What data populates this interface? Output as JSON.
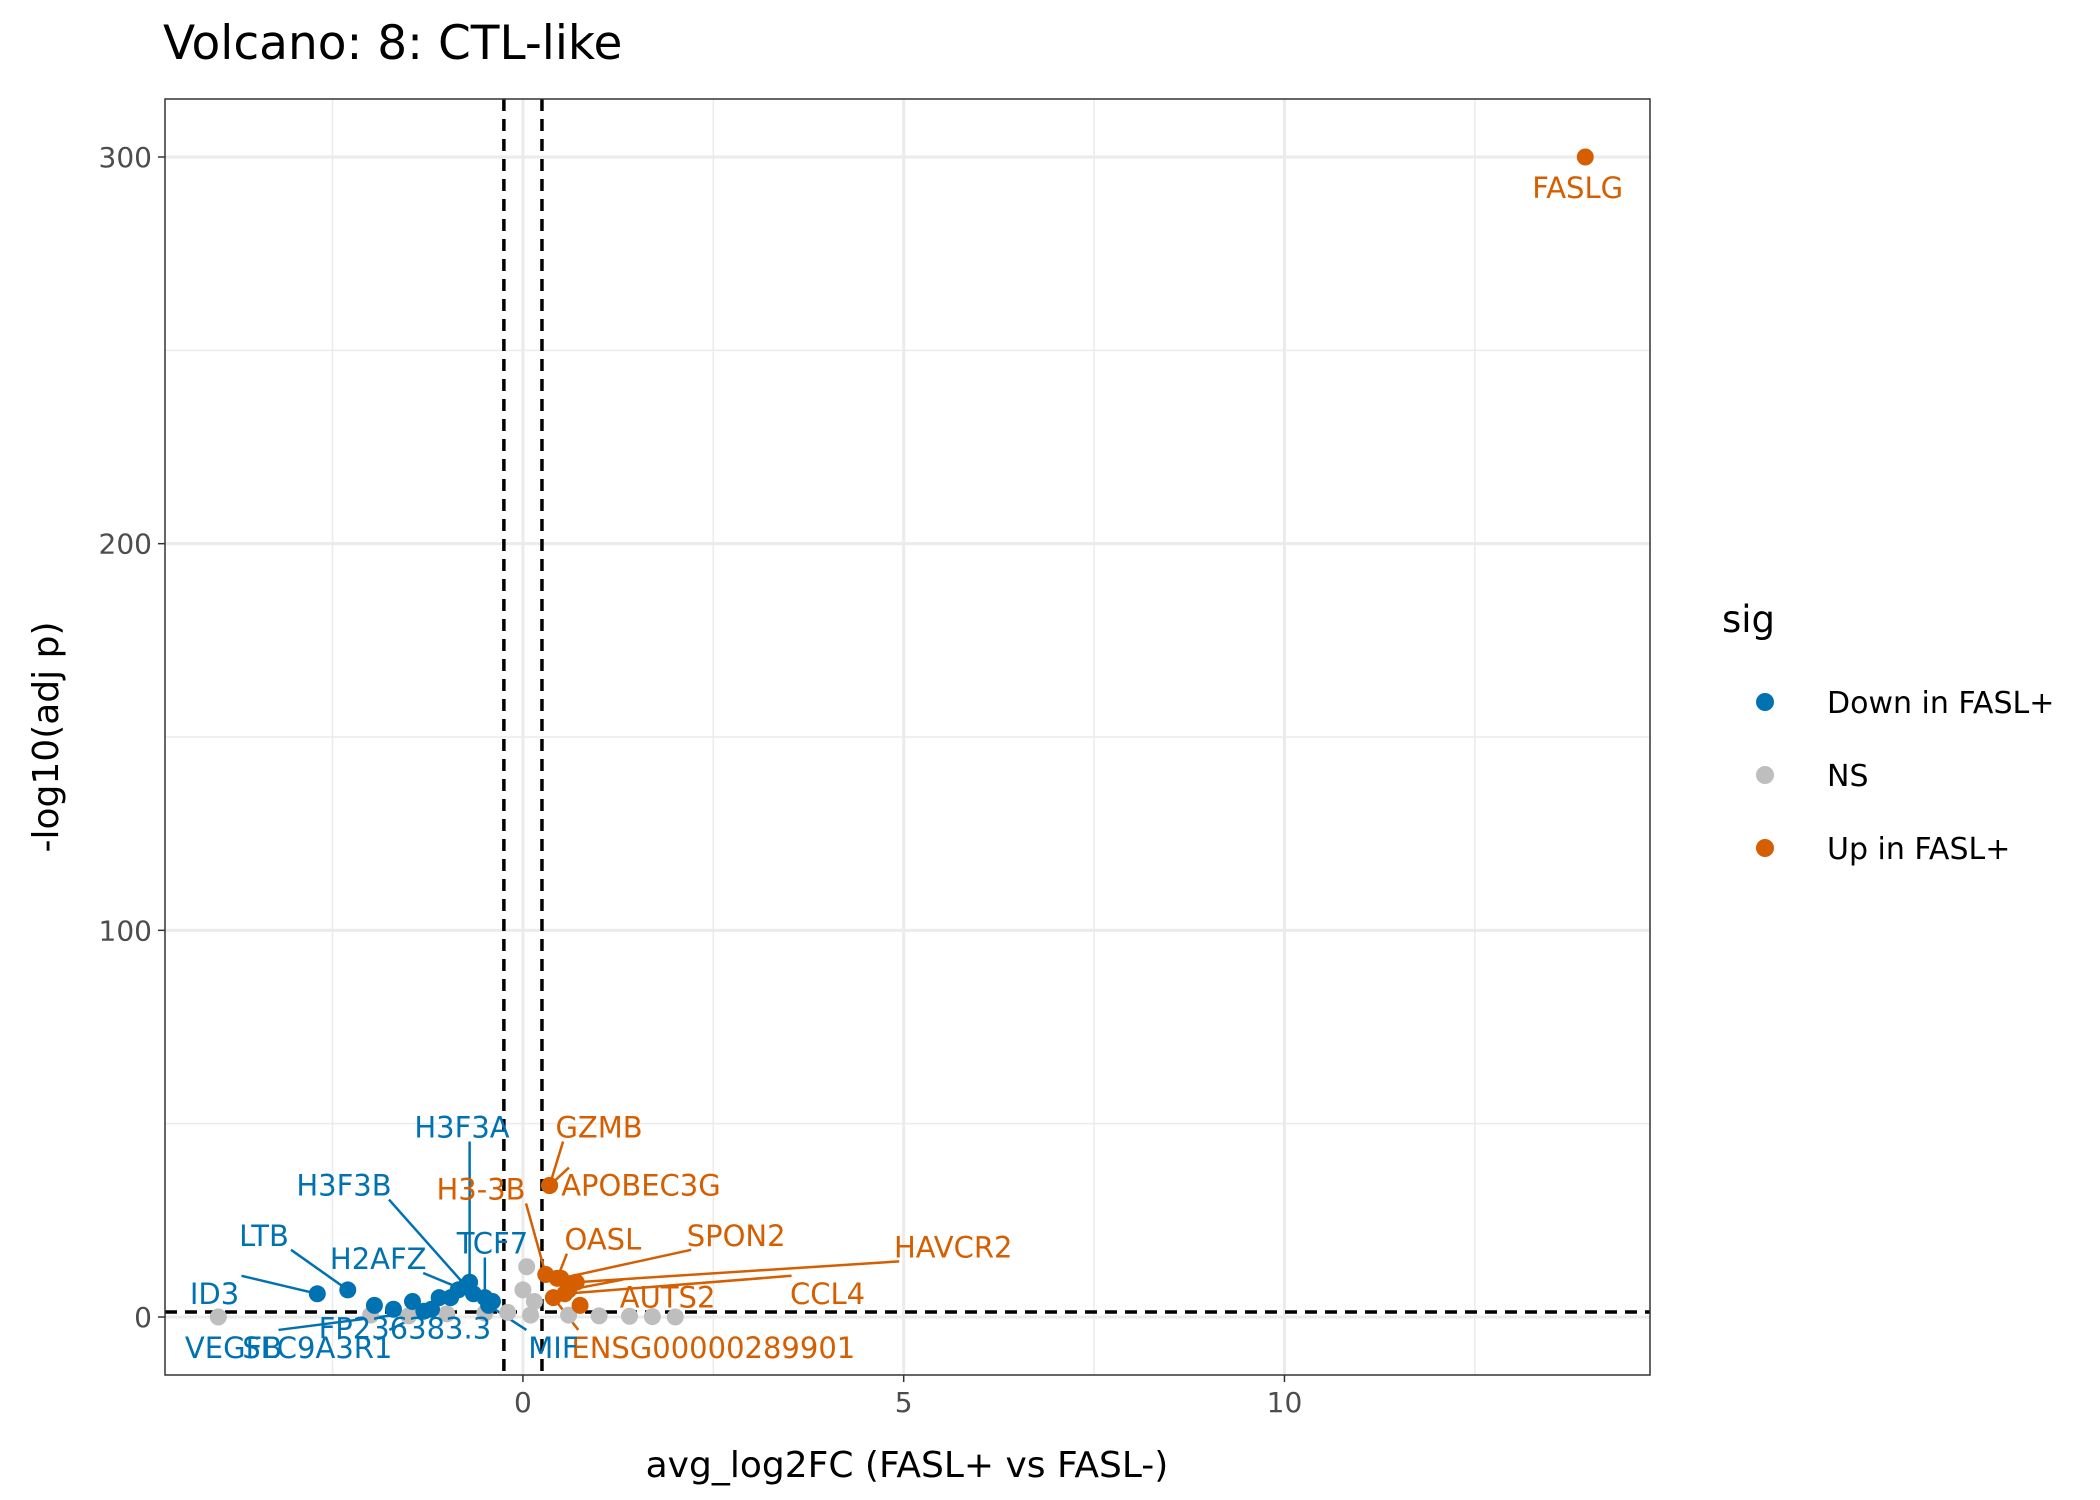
{
  "colors": {
    "down": "#0072B2",
    "ns": "#BEBEBE",
    "up": "#D55E00",
    "grid": "#EBEBEB",
    "thresholds": "#000000"
  },
  "chart_data": {
    "type": "scatter",
    "title": "Volcano: 8: CTL-like",
    "xlabel": "avg_log2FC (FASL+ vs FASL-)",
    "ylabel": "-log10(adj p)",
    "xlim": [
      -4.7,
      14.8
    ],
    "ylim": [
      -15,
      315
    ],
    "x_ticks": [
      0,
      5,
      10
    ],
    "y_ticks": [
      0,
      100,
      200,
      300
    ],
    "thresholds": {
      "x": [
        -0.25,
        0.25
      ],
      "y": 1.3
    },
    "legend": {
      "title": "sig",
      "position": "right",
      "entries": [
        {
          "label": "Down in FASL+",
          "color_key": "down"
        },
        {
          "label": "NS",
          "color_key": "ns"
        },
        {
          "label": "Up in FASL+",
          "color_key": "up"
        }
      ]
    },
    "points": [
      {
        "x": 13.95,
        "y": 300,
        "group": "up",
        "label": "FASLG",
        "lx": 13.85,
        "ly": 292
      },
      {
        "x": 0.35,
        "y": 34,
        "group": "up",
        "label": "GZMB",
        "lx": 1.0,
        "ly": 49
      },
      {
        "x": 0.35,
        "y": 34,
        "group": "up",
        "label": "APOBEC3G",
        "lx": 1.55,
        "ly": 34
      },
      {
        "x": 0.3,
        "y": 11,
        "group": "up",
        "label": "H3-3B",
        "lx": -0.55,
        "ly": 33
      },
      {
        "x": 0.45,
        "y": 10,
        "group": "up",
        "label": "OASL",
        "lx": 1.05,
        "ly": 20
      },
      {
        "x": 0.5,
        "y": 10,
        "group": "up",
        "label": "SPON2",
        "lx": 2.8,
        "ly": 21
      },
      {
        "x": 0.7,
        "y": 9,
        "group": "up",
        "label": "HAVCR2",
        "lx": 5.65,
        "ly": 18
      },
      {
        "x": 0.6,
        "y": 7,
        "group": "up",
        "label": "AUTS2",
        "lx": 1.9,
        "ly": 5
      },
      {
        "x": 0.55,
        "y": 6,
        "group": "up",
        "label": "CCL4",
        "lx": 4.0,
        "ly": 6
      },
      {
        "x": 0.4,
        "y": 5,
        "group": "up",
        "label": "ENSG00000289901",
        "lx": 2.5,
        "ly": -8
      },
      {
        "x": 0.75,
        "y": 3,
        "group": "up"
      },
      {
        "x": -0.7,
        "y": 9,
        "group": "down",
        "label": "H3F3A",
        "lx": -0.8,
        "ly": 49
      },
      {
        "x": -0.75,
        "y": 8,
        "group": "down",
        "label": "H3F3B",
        "lx": -2.35,
        "ly": 34
      },
      {
        "x": -2.3,
        "y": 7,
        "group": "down",
        "label": "LTB",
        "lx": -3.4,
        "ly": 21
      },
      {
        "x": -0.65,
        "y": 6,
        "group": "down",
        "label": "H2AFZ",
        "lx": -1.9,
        "ly": 15
      },
      {
        "x": -0.5,
        "y": 5,
        "group": "down",
        "label": "TCF7",
        "lx": -0.4,
        "ly": 19
      },
      {
        "x": -2.7,
        "y": 6,
        "group": "down",
        "label": "ID3",
        "lx": -4.05,
        "ly": 6
      },
      {
        "x": -0.4,
        "y": 4,
        "group": "down",
        "label": "FP236383.3",
        "lx": -1.55,
        "ly": -3
      },
      {
        "x": -0.45,
        "y": 3,
        "group": "down",
        "label": "MIF",
        "lx": 0.4,
        "ly": -8
      },
      {
        "x": -1.2,
        "y": 2,
        "group": "down",
        "label": "SLC9A3R1",
        "lx": -2.7,
        "ly": -8
      },
      {
        "x": -1.3,
        "y": 1.5,
        "group": "down",
        "label": "VEGFB",
        "lx": -3.8,
        "ly": -8
      },
      {
        "x": -0.95,
        "y": 5,
        "group": "down"
      },
      {
        "x": -1.1,
        "y": 5,
        "group": "down"
      },
      {
        "x": -1.45,
        "y": 4,
        "group": "down"
      },
      {
        "x": -1.7,
        "y": 2,
        "group": "down"
      },
      {
        "x": -1.95,
        "y": 3,
        "group": "down"
      },
      {
        "x": -0.85,
        "y": 7,
        "group": "down"
      },
      {
        "x": 0.05,
        "y": 13,
        "group": "ns"
      },
      {
        "x": 0.0,
        "y": 7,
        "group": "ns"
      },
      {
        "x": 0.15,
        "y": 4,
        "group": "ns"
      },
      {
        "x": -4.0,
        "y": 0,
        "group": "ns"
      },
      {
        "x": -2.0,
        "y": 0.5,
        "group": "ns"
      },
      {
        "x": -1.5,
        "y": 0.3,
        "group": "ns"
      },
      {
        "x": -1.0,
        "y": 0.8,
        "group": "ns"
      },
      {
        "x": -0.5,
        "y": 1,
        "group": "ns"
      },
      {
        "x": -0.2,
        "y": 1.2,
        "group": "ns"
      },
      {
        "x": 0.1,
        "y": 0.5,
        "group": "ns"
      },
      {
        "x": 0.6,
        "y": 0.5,
        "group": "ns"
      },
      {
        "x": 1.0,
        "y": 0.3,
        "group": "ns"
      },
      {
        "x": 1.4,
        "y": 0.2,
        "group": "ns"
      },
      {
        "x": 1.7,
        "y": 0.1,
        "group": "ns"
      },
      {
        "x": 2.0,
        "y": 0.0,
        "group": "ns"
      }
    ]
  }
}
